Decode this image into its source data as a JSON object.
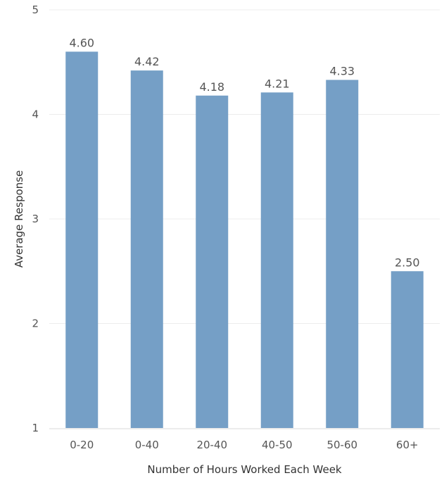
{
  "chart_data": {
    "type": "bar",
    "categories": [
      "0-20",
      "0-40",
      "20-40",
      "40-50",
      "50-60",
      "60+"
    ],
    "values": [
      4.6,
      4.42,
      4.18,
      4.21,
      4.33,
      2.5
    ],
    "value_labels": [
      "4.60",
      "4.42",
      "4.18",
      "4.21",
      "4.33",
      "2.50"
    ],
    "xlabel": "Number of Hours Worked Each Week",
    "ylabel": "Average Response",
    "ylim": [
      1,
      5
    ],
    "yticks": [
      1,
      2,
      3,
      4,
      5
    ],
    "grid": true,
    "bar_color": "#759fc6"
  }
}
